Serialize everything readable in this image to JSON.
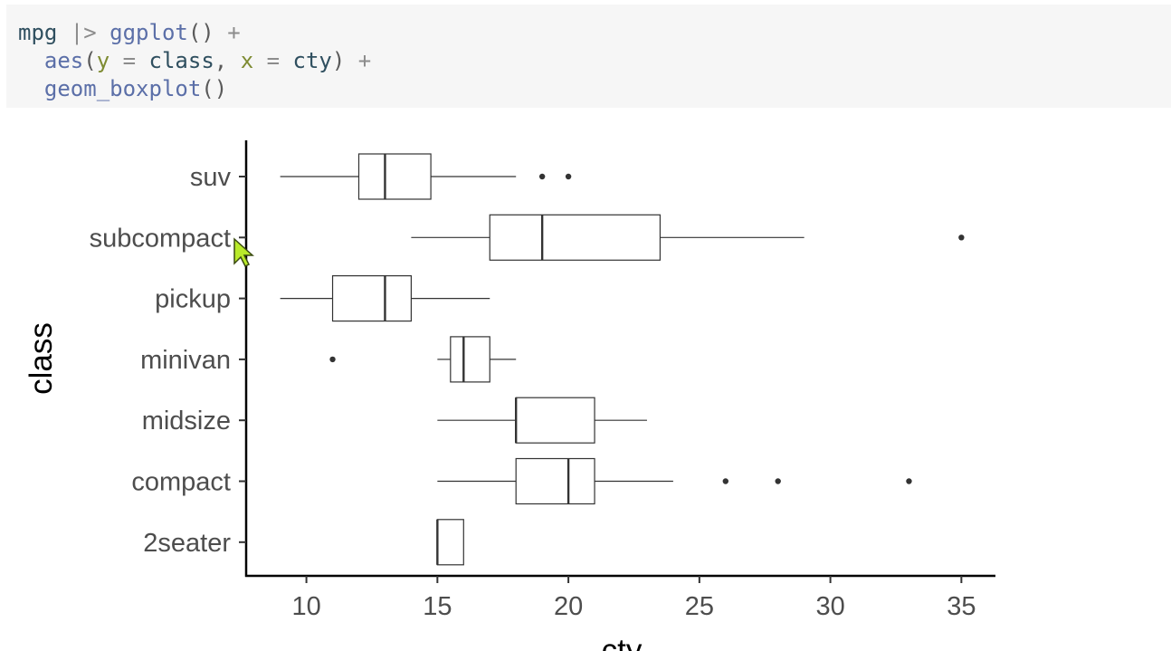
{
  "code": {
    "lines": [
      [
        {
          "t": "mpg",
          "k": "id"
        },
        {
          "t": " |> ",
          "k": "op"
        },
        {
          "t": "ggplot",
          "k": "fn"
        },
        {
          "t": "()",
          "k": "punc"
        },
        {
          "t": " +",
          "k": "op"
        }
      ],
      [
        {
          "t": "  ",
          "k": "punc"
        },
        {
          "t": "aes",
          "k": "fn"
        },
        {
          "t": "(",
          "k": "punc"
        },
        {
          "t": "y",
          "k": "arg"
        },
        {
          "t": " = ",
          "k": "op"
        },
        {
          "t": "class",
          "k": "id"
        },
        {
          "t": ", ",
          "k": "punc"
        },
        {
          "t": "x",
          "k": "arg"
        },
        {
          "t": " = ",
          "k": "op"
        },
        {
          "t": "cty",
          "k": "id"
        },
        {
          "t": ")",
          "k": "punc"
        },
        {
          "t": " +",
          "k": "op"
        }
      ],
      [
        {
          "t": "  ",
          "k": "punc"
        },
        {
          "t": "geom_boxplot",
          "k": "fn"
        },
        {
          "t": "()",
          "k": "punc"
        }
      ]
    ]
  },
  "chart_data": {
    "type": "boxplot",
    "orientation": "horizontal",
    "xlabel": "cty",
    "ylabel": "class",
    "xlim": [
      7.7,
      36.3
    ],
    "x_ticks": [
      10,
      15,
      20,
      25,
      30,
      35
    ],
    "categories": [
      "suv",
      "subcompact",
      "pickup",
      "minivan",
      "midsize",
      "compact",
      "2seater"
    ],
    "boxes": [
      {
        "category": "suv",
        "whisker_low": 9,
        "q1": 12,
        "median": 13,
        "q3": 14.75,
        "whisker_high": 18,
        "outliers": [
          19,
          20
        ]
      },
      {
        "category": "subcompact",
        "whisker_low": 14,
        "q1": 17,
        "median": 19,
        "q3": 23.5,
        "whisker_high": 29,
        "outliers": [
          35
        ]
      },
      {
        "category": "pickup",
        "whisker_low": 9,
        "q1": 11,
        "median": 13,
        "q3": 14,
        "whisker_high": 17,
        "outliers": []
      },
      {
        "category": "minivan",
        "whisker_low": 15,
        "q1": 15.5,
        "median": 16,
        "q3": 17,
        "whisker_high": 18,
        "outliers": [
          11
        ]
      },
      {
        "category": "midsize",
        "whisker_low": 15,
        "q1": 18,
        "median": 18,
        "q3": 21,
        "whisker_high": 23,
        "outliers": []
      },
      {
        "category": "compact",
        "whisker_low": 15,
        "q1": 18,
        "median": 20,
        "q3": 21,
        "whisker_high": 24,
        "outliers": [
          26,
          28,
          33
        ]
      },
      {
        "category": "2seater",
        "whisker_low": 15,
        "q1": 15,
        "median": 15,
        "q3": 16,
        "whisker_high": 16,
        "outliers": []
      }
    ],
    "grid": false,
    "legend": "none"
  }
}
